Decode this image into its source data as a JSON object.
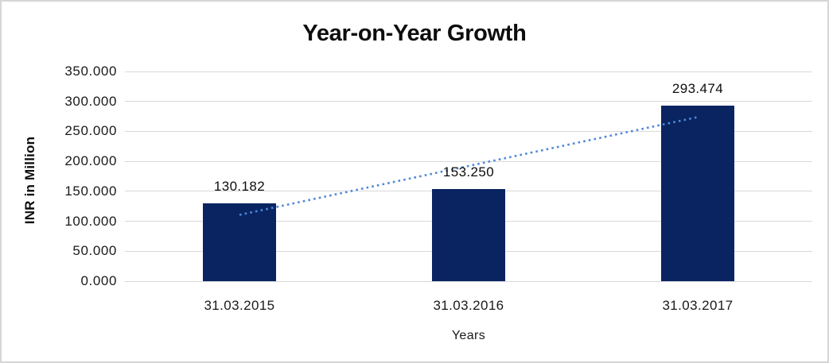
{
  "chart_data": {
    "type": "bar",
    "title": "Year-on-Year Growth",
    "xlabel": "Years",
    "ylabel": "INR in Million",
    "categories": [
      "31.03.2015",
      "31.03.2016",
      "31.03.2017"
    ],
    "values": [
      130.182,
      153.25,
      293.474
    ],
    "value_labels": [
      "130.182",
      "153.250",
      "293.474"
    ],
    "y_tick_labels": [
      "350.000",
      "300.000",
      "250.000",
      "200.000",
      "150.000",
      "100.000",
      "50.000",
      "0.000"
    ],
    "ylim": [
      0,
      350
    ],
    "grid": true,
    "legend": false,
    "trendline": {
      "type": "linear",
      "style": "dotted"
    },
    "colors": {
      "bar": "#0A2462",
      "trendline": "#4E88D9",
      "gridline": "#D9D9D9"
    }
  }
}
